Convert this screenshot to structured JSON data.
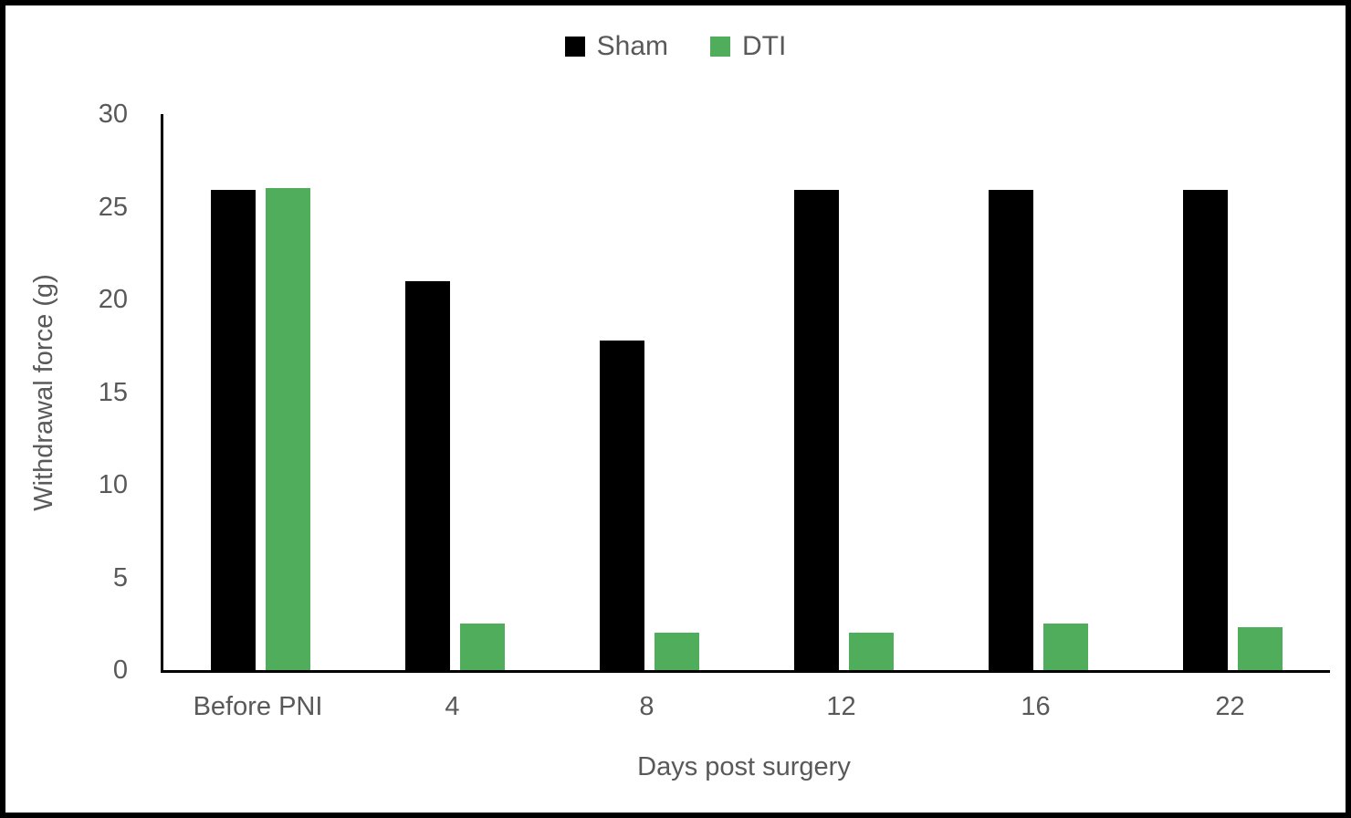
{
  "chart_data": {
    "type": "bar",
    "title": "",
    "categories": [
      "Before PNI",
      "4",
      "8",
      "12",
      "16",
      "22"
    ],
    "series": [
      {
        "name": "Sham",
        "color": "#000000",
        "values": [
          25.9,
          21,
          17.8,
          25.9,
          25.9,
          25.9
        ]
      },
      {
        "name": "DTI",
        "color": "#4FAD5C",
        "values": [
          26,
          2.5,
          2,
          2,
          2.5,
          2.3
        ]
      }
    ],
    "xlabel": "Days post surgery",
    "ylabel": "Withdrawal force (g)",
    "ylim": [
      0,
      30
    ],
    "yticks": [
      0,
      5,
      10,
      15,
      20,
      25,
      30
    ],
    "legend_position": "top",
    "grid": false,
    "text_color": "#595959",
    "axis_color": "#000000",
    "background_color": "#ffffff",
    "frame_border_color": "#000000"
  }
}
